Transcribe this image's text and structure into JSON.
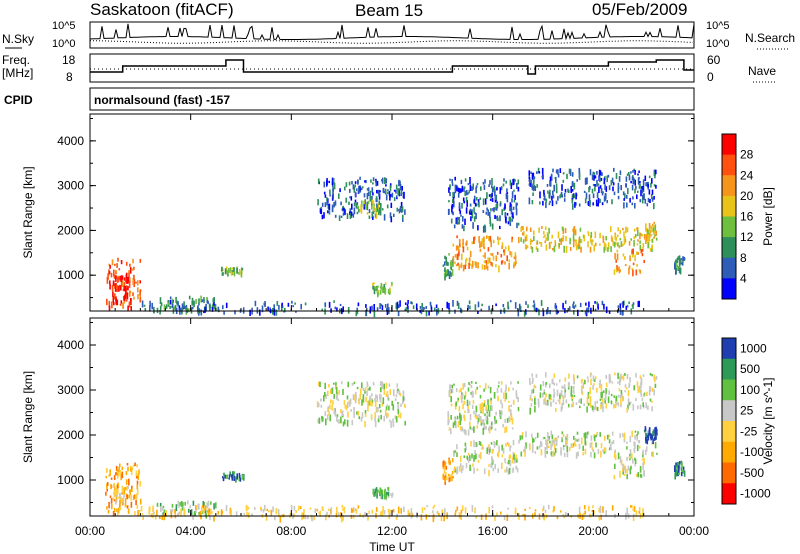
{
  "header": {
    "title": "Saskatoon (fitACF)",
    "beam": "Beam 15",
    "date": "05/Feb/2009"
  },
  "top_panels": {
    "nsky_label": "N.Sky",
    "nsky_scale": [
      "10^5",
      "10^0"
    ],
    "nsearch_label": "N.Search",
    "nsearch_scale": [
      "10^5",
      "10^0"
    ],
    "freq_label_1": "Freq.",
    "freq_label_2": "[MHz]",
    "freq_ticks": [
      "18",
      "8"
    ],
    "nave_label": "Nave",
    "nave_ticks": [
      "60",
      "0"
    ],
    "cpid_label": "CPID",
    "cpid_value": "normalsound (fast) -157"
  },
  "x_axis": {
    "label": "Time UT",
    "ticks": [
      "00:00",
      "04:00",
      "08:00",
      "12:00",
      "16:00",
      "20:00",
      "00:00"
    ]
  },
  "colors": {
    "power_scale": [
      "#0000ff",
      "#2e5db8",
      "#2f8f5a",
      "#6fbf3f",
      "#e8c41a",
      "#f5951c",
      "#ff5010",
      "#ff0000"
    ],
    "velocity_scale": [
      "#ff0000",
      "#ff6a00",
      "#ffaa00",
      "#ffd040",
      "#c8c8c8",
      "#60c040",
      "#2e9a58",
      "#1f3fb0"
    ],
    "nsearch_line": "dotted",
    "nave_line": "dotted"
  },
  "chart_data": [
    {
      "type": "heatmap",
      "title": "Power",
      "ylabel": "Slant Range [km]",
      "xlabel": "",
      "y_ticks": [
        "1000",
        "2000",
        "3000",
        "4000"
      ],
      "ylim": [
        200,
        4600
      ],
      "xlim_hours": [
        0,
        24
      ],
      "colorbar_label": "Power [dB]",
      "colorbar_ticks": [
        "4",
        "8",
        "12",
        "16",
        "20",
        "24",
        "28"
      ],
      "regions": [
        {
          "t0": 0.6,
          "t1": 2.0,
          "r0": 300,
          "r1": 1400,
          "level": 6
        },
        {
          "t0": 0.9,
          "t1": 1.5,
          "r0": 500,
          "r1": 1000,
          "level": 7
        },
        {
          "t0": 2.6,
          "t1": 5.0,
          "r0": 250,
          "r1": 550,
          "level": 2
        },
        {
          "t0": 5.2,
          "t1": 6.1,
          "r0": 1050,
          "r1": 1200,
          "level": 3
        },
        {
          "t0": 9.0,
          "t1": 12.5,
          "r0": 2300,
          "r1": 3200,
          "level": 1
        },
        {
          "t0": 10.6,
          "t1": 11.5,
          "r0": 2400,
          "r1": 2700,
          "level": 3
        },
        {
          "t0": 2.0,
          "t1": 22.0,
          "r0": 200,
          "r1": 450,
          "level": 1
        },
        {
          "t0": 11.2,
          "t1": 12.0,
          "r0": 650,
          "r1": 850,
          "level": 3
        },
        {
          "t0": 14.0,
          "t1": 14.4,
          "r0": 1000,
          "r1": 1500,
          "level": 2
        },
        {
          "t0": 14.4,
          "t1": 17.0,
          "r0": 1200,
          "r1": 1900,
          "level": 5
        },
        {
          "t0": 14.2,
          "t1": 17.0,
          "r0": 2100,
          "r1": 3200,
          "level": 1
        },
        {
          "t0": 17.0,
          "t1": 22.5,
          "r0": 1600,
          "r1": 2100,
          "level": 4
        },
        {
          "t0": 17.4,
          "t1": 22.5,
          "r0": 2600,
          "r1": 3400,
          "level": 1
        },
        {
          "t0": 20.8,
          "t1": 22.0,
          "r0": 1100,
          "r1": 1600,
          "level": 5
        },
        {
          "t0": 22.0,
          "t1": 22.5,
          "r0": 1900,
          "r1": 2200,
          "level": 4
        },
        {
          "t0": 23.2,
          "t1": 23.6,
          "r0": 1150,
          "r1": 1450,
          "level": 2
        }
      ]
    },
    {
      "type": "heatmap",
      "title": "Velocity",
      "ylabel": "Slant Range [km]",
      "xlabel": "Time UT",
      "y_ticks": [
        "1000",
        "2000",
        "3000",
        "4000"
      ],
      "ylim": [
        200,
        4600
      ],
      "xlim_hours": [
        0,
        24
      ],
      "colorbar_label": "Velocity [m s^-1]",
      "colorbar_ticks": [
        "1000",
        "500",
        "100",
        "25",
        "-25",
        "-100",
        "-500",
        "-1000"
      ],
      "regions": [
        {
          "t0": 0.6,
          "t1": 2.0,
          "r0": 300,
          "r1": 1400,
          "level": 2
        },
        {
          "t0": 0.9,
          "t1": 1.5,
          "r0": 550,
          "r1": 900,
          "level": 3
        },
        {
          "t0": 2.6,
          "t1": 5.0,
          "r0": 250,
          "r1": 550,
          "level": 5
        },
        {
          "t0": 5.2,
          "t1": 6.1,
          "r0": 1050,
          "r1": 1200,
          "level": 6
        },
        {
          "t0": 9.0,
          "t1": 12.5,
          "r0": 2300,
          "r1": 3200,
          "level": 4
        },
        {
          "t0": 2.0,
          "t1": 22.0,
          "r0": 200,
          "r1": 450,
          "level": 3
        },
        {
          "t0": 11.2,
          "t1": 12.0,
          "r0": 650,
          "r1": 850,
          "level": 5
        },
        {
          "t0": 14.0,
          "t1": 14.4,
          "r0": 1000,
          "r1": 1500,
          "level": 2
        },
        {
          "t0": 14.4,
          "t1": 17.0,
          "r0": 1200,
          "r1": 1900,
          "level": 4
        },
        {
          "t0": 14.2,
          "t1": 17.0,
          "r0": 2100,
          "r1": 3200,
          "level": 4
        },
        {
          "t0": 17.0,
          "t1": 22.5,
          "r0": 1600,
          "r1": 2100,
          "level": 4
        },
        {
          "t0": 17.4,
          "t1": 22.5,
          "r0": 2600,
          "r1": 3400,
          "level": 4
        },
        {
          "t0": 20.8,
          "t1": 22.0,
          "r0": 1100,
          "r1": 1600,
          "level": 4
        },
        {
          "t0": 22.0,
          "t1": 22.5,
          "r0": 1900,
          "r1": 2200,
          "level": 7
        },
        {
          "t0": 23.2,
          "t1": 23.6,
          "r0": 1150,
          "r1": 1450,
          "level": 6
        }
      ]
    }
  ]
}
